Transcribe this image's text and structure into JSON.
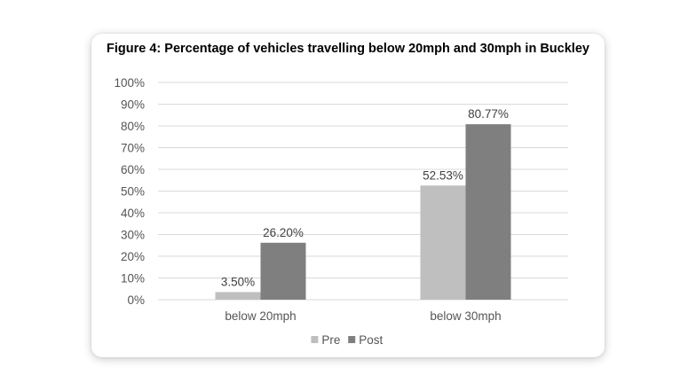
{
  "chart_data": {
    "type": "bar",
    "title": "Figure 4: Percentage of vehicles travelling below 20mph and 30mph in Buckley",
    "categories": [
      "below 20mph",
      "below 30mph"
    ],
    "series": [
      {
        "name": "Pre",
        "values": [
          3.5,
          52.53
        ],
        "labels": [
          "3.50%",
          "52.53%"
        ],
        "color": "#bfbfbf"
      },
      {
        "name": "Post",
        "values": [
          26.2,
          80.77
        ],
        "labels": [
          "26.20%",
          "80.77%"
        ],
        "color": "#7f7f7f"
      }
    ],
    "yticks": [
      0,
      10,
      20,
      30,
      40,
      50,
      60,
      70,
      80,
      90,
      100
    ],
    "ytick_labels": [
      "0%",
      "10%",
      "20%",
      "30%",
      "40%",
      "50%",
      "60%",
      "70%",
      "80%",
      "90%",
      "100%"
    ],
    "ylim": [
      0,
      100
    ],
    "grid": true,
    "gridline_color": "#d9d9d9",
    "legend_position": "bottom"
  }
}
